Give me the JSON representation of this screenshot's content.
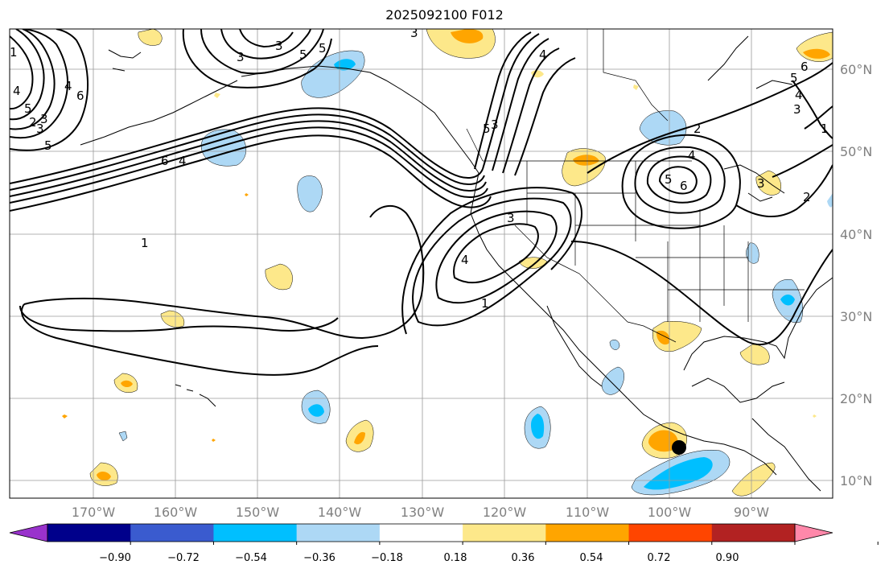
{
  "title": "2025092100 F012",
  "lat_labels": [
    "60°N",
    "50°N",
    "40°N",
    "30°N",
    "20°N",
    "10°N"
  ],
  "lon_labels": [
    "170°W",
    "160°W",
    "150°W",
    "140°W",
    "130°W",
    "120°W",
    "110°W",
    "100°W",
    "90°W"
  ],
  "colorbar": {
    "ticks": [
      "−0.90",
      "−0.72",
      "−0.54",
      "−0.36",
      "−0.18",
      "0.18",
      "0.36",
      "0.54",
      "0.72",
      "0.90"
    ],
    "colors": [
      "#9932cc",
      "#00008b",
      "#3a5bcf",
      "#00bfff",
      "#add8f5",
      "#ffffff",
      "#fde88a",
      "#ffa500",
      "#ff4500",
      "#b22222",
      "#ff88aa"
    ]
  },
  "contour_labels": [
    "6",
    "3",
    "5",
    "4",
    "6",
    "5",
    "3",
    "2",
    "3",
    "5",
    "1",
    "3",
    "2",
    "4",
    "4",
    "5",
    "3",
    "6",
    "4",
    "5",
    "3",
    "6",
    "4",
    "5",
    "3",
    "3",
    "4",
    "1",
    "1",
    "1",
    "4",
    "5",
    "2",
    "3"
  ],
  "colors": {
    "positive_light": "#fde88a",
    "positive_mid": "#ffa500",
    "negative_light": "#add8f5",
    "negative_mid": "#00bfff"
  },
  "marker": "black-circle"
}
